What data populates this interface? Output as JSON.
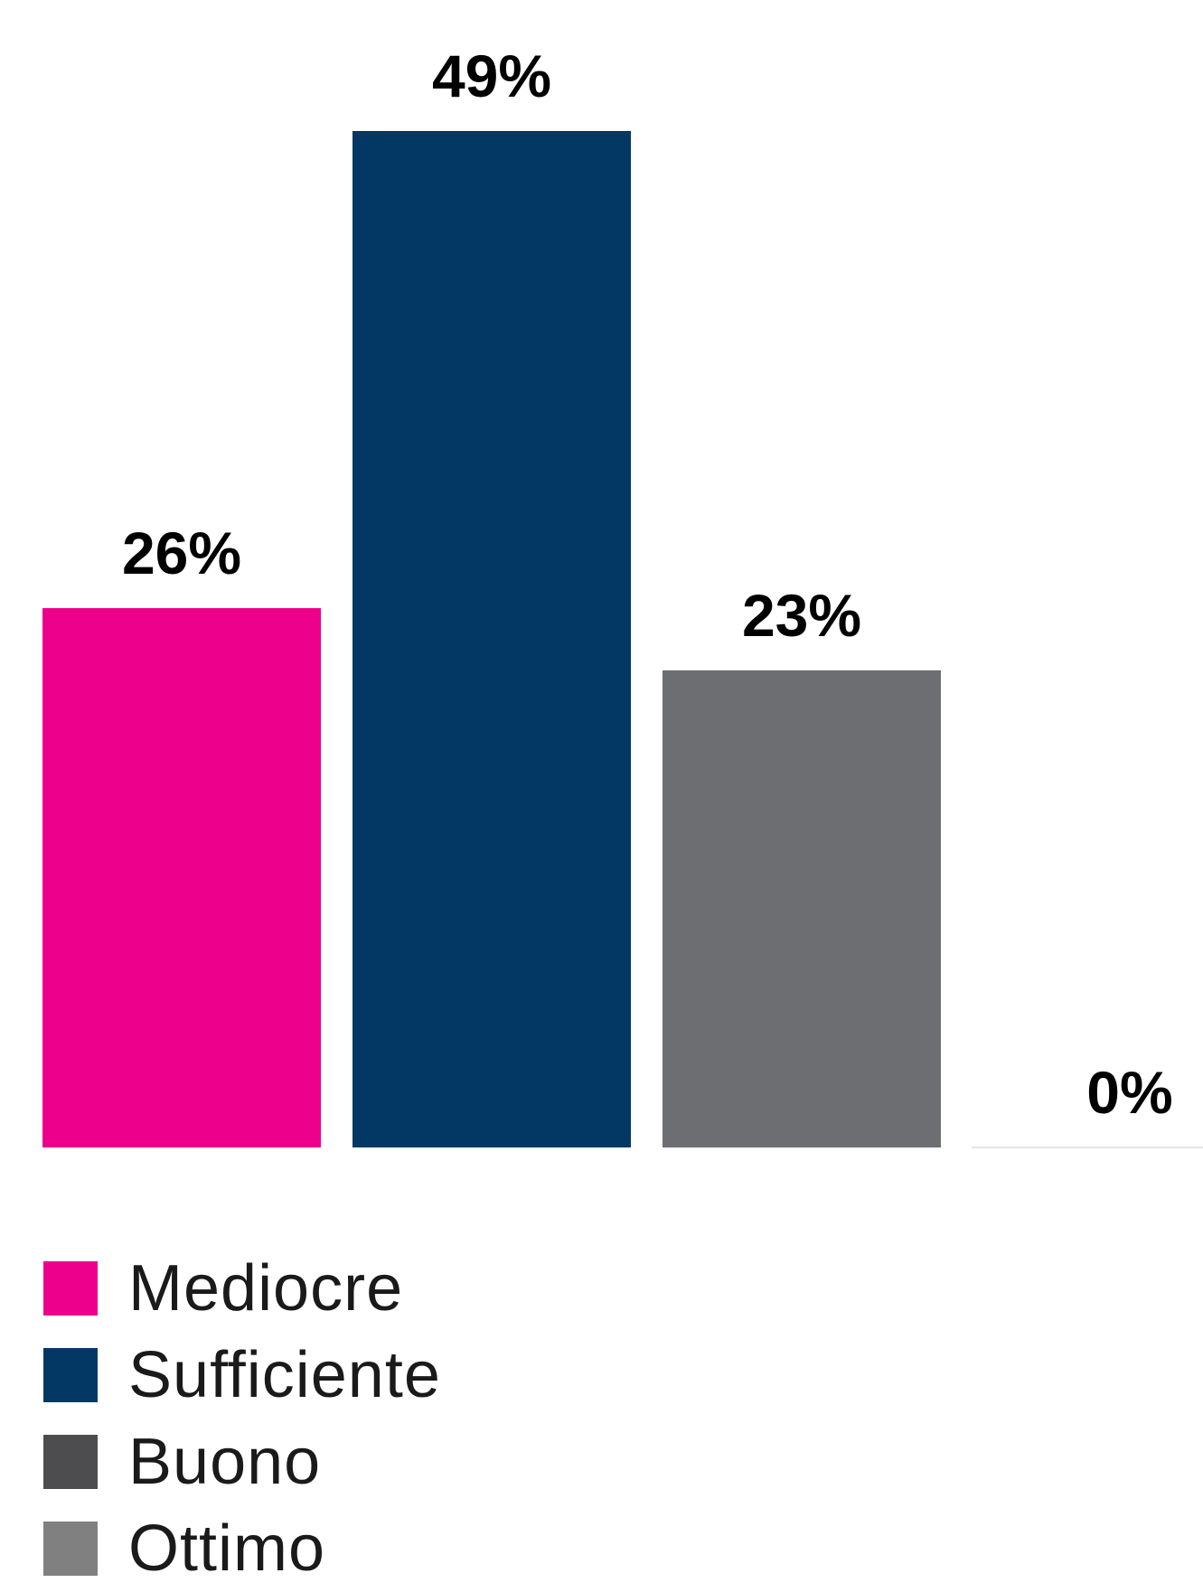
{
  "chart_data": {
    "type": "bar",
    "categories": [
      "Mediocre",
      "Sufficiente",
      "Buono",
      "Ottimo"
    ],
    "values": [
      26,
      49,
      23,
      0
    ],
    "data_labels": [
      "26%",
      "49%",
      "23%",
      "0%"
    ],
    "unit": "%",
    "ylim": [
      0,
      49
    ],
    "grid": false,
    "legend_position": "bottom-left",
    "bar_colors": [
      "#EC008C",
      "#033865",
      "#6D6E71",
      "#808080"
    ],
    "legend": [
      {
        "label": "Mediocre",
        "color": "#EC008C"
      },
      {
        "label": "Sufficiente",
        "color": "#033865"
      },
      {
        "label": "Buono",
        "color": "#4D4D4F"
      },
      {
        "label": "Ottimo",
        "color": "#808080"
      }
    ]
  }
}
